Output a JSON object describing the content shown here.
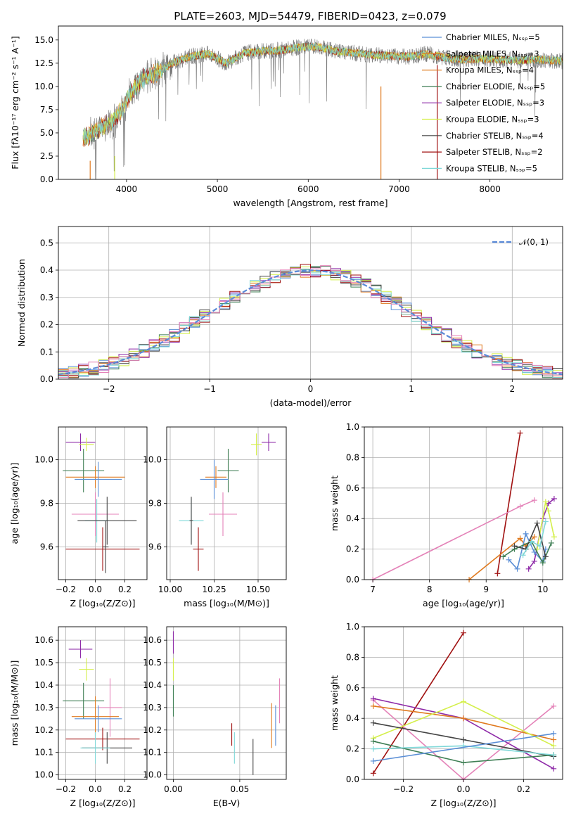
{
  "colors": {
    "Chabrier MILES": "#5b8fd6",
    "Salpeter MILES": "#e07a1f",
    "Kroupa MILES": "#e07a1f",
    "Chabrier ELODIE": "#3f7f55",
    "Salpeter ELODIE": "#8e2aa8",
    "Kroupa ELODIE": "#d4ef4a",
    "Chabrier STELIB": "#444444",
    "Salpeter STELIB": "#a01010",
    "Kroupa STELIB": "#7fd8d8",
    "pink": "#e482b8",
    "normal": "#5a8ad8"
  },
  "chart_data": [
    {
      "id": "spectrum",
      "type": "line",
      "title": "PLATE=2603, MJD=54479, FIBERID=0423, z=0.079",
      "xlabel": "wavelength [Angstrom, rest frame]",
      "ylabel": "Flux [fλ10⁻¹⁷ erg cm⁻² s⁻¹ A⁻¹]",
      "xlim": [
        3250,
        8800
      ],
      "ylim": [
        0,
        16.5
      ],
      "xticks": [
        "4000",
        "5000",
        "6000",
        "7000",
        "8000"
      ],
      "yticks": [
        "0.0",
        "2.5",
        "5.0",
        "7.5",
        "10.0",
        "12.5",
        "15.0"
      ],
      "legend_position": "right",
      "grid": false,
      "continuum_x": [
        3550,
        3700,
        3850,
        3950,
        4050,
        4200,
        4350,
        4500,
        4700,
        4900,
        5100,
        5300,
        5500,
        5700,
        5900,
        6100,
        6300,
        6500,
        6700,
        6900,
        7100,
        7300,
        7500,
        7700,
        7900,
        8100,
        8300,
        8500,
        8700,
        8800
      ],
      "continuum_y": [
        4.5,
        5.5,
        6.2,
        7.5,
        9.5,
        11.0,
        11.5,
        12.5,
        13.2,
        13.5,
        12.5,
        13.6,
        13.8,
        13.9,
        14.2,
        14.3,
        13.8,
        13.6,
        13.4,
        13.3,
        13.2,
        13.5,
        13.1,
        12.9,
        13.0,
        12.9,
        12.8,
        12.9,
        12.8,
        12.7
      ],
      "series": [
        {
          "name": "Chabrier MILES, Nₛₛₚ=5",
          "label": "Chabrier MILES",
          "nssp": "5"
        },
        {
          "name": "Salpeter MILES, Nₛₛₚ=3",
          "label": "Salpeter MILES",
          "nssp": "3"
        },
        {
          "name": "Kroupa MILES, Nₛₛₚ=4",
          "label": "Kroupa MILES",
          "nssp": "4"
        },
        {
          "name": "Chabrier ELODIE, Nₛₛₚ=5",
          "label": "Chabrier ELODIE",
          "nssp": "5"
        },
        {
          "name": "Salpeter ELODIE, Nₛₛₚ=3",
          "label": "Salpeter ELODIE",
          "nssp": "3"
        },
        {
          "name": "Kroupa ELODIE, Nₛₛₚ=3",
          "label": "Kroupa ELODIE",
          "nssp": "3"
        },
        {
          "name": "Chabrier STELIB, Nₛₛₚ=4",
          "label": "Chabrier STELIB",
          "nssp": "4"
        },
        {
          "name": "Salpeter STELIB, Nₛₛₚ=2",
          "label": "Salpeter STELIB",
          "nssp": "2"
        },
        {
          "name": "Kroupa STELIB, Nₛₛₚ=5",
          "label": "Kroupa STELIB",
          "nssp": "5"
        }
      ]
    },
    {
      "id": "residuals",
      "type": "histogram",
      "xlabel": "(data-model)/error",
      "ylabel": "Normed distribution",
      "xlim": [
        -2.5,
        2.5
      ],
      "ylim": [
        0,
        0.56
      ],
      "xticks": [
        "−2",
        "−1",
        "0",
        "1",
        "2"
      ],
      "yticks": [
        "0.0",
        "0.1",
        "0.2",
        "0.3",
        "0.4",
        "0.5"
      ],
      "grid": true,
      "legend": "𝒩(0, 1)",
      "legend_position": "top-right",
      "bin_width": 0.1
    },
    {
      "id": "age-vs-Z",
      "type": "scatter-errorbar",
      "xlabel": "Z [log₁₀(Z/Z⊙)]",
      "ylabel": "age  [log₁₀(age/yr)]",
      "xlim": [
        -0.25,
        0.35
      ],
      "ylim": [
        9.45,
        10.15
      ],
      "xticks": [
        "−0.2",
        "0.0",
        "0.2"
      ],
      "yticks": [
        "9.6",
        "9.8",
        "10.0"
      ],
      "grid": true,
      "points": [
        {
          "c": "Salpeter ELODIE",
          "x": -0.1,
          "xe": 0.1,
          "y": 10.08,
          "ye": 0.04
        },
        {
          "c": "Kroupa ELODIE",
          "x": -0.06,
          "xe": 0.05,
          "y": 10.07,
          "ye": 0.03
        },
        {
          "c": "Chabrier ELODIE",
          "x": -0.08,
          "xe": 0.14,
          "y": 9.95,
          "ye": 0.1
        },
        {
          "c": "Salpeter MILES",
          "x": 0.0,
          "xe": 0.2,
          "y": 9.92,
          "ye": 0.05
        },
        {
          "c": "Chabrier MILES",
          "x": 0.02,
          "xe": 0.16,
          "y": 9.91,
          "ye": 0.08
        },
        {
          "c": "pink",
          "x": 0.0,
          "xe": 0.16,
          "y": 9.75,
          "ye": 0.1
        },
        {
          "c": "Kroupa STELIB",
          "x": 0.01,
          "xe": 0.08,
          "y": 9.72,
          "ye": 0.1
        },
        {
          "c": "Chabrier STELIB",
          "x": 0.08,
          "xe": 0.2,
          "y": 9.72,
          "ye": 0.11
        },
        {
          "c": "Salpeter STELIB",
          "x": 0.05,
          "xe": 0.25,
          "y": 9.59,
          "ye": 0.1
        },
        {
          "c": "Chabrier STELIB",
          "x": 0.07,
          "xe": 0.02,
          "y": 9.6,
          "ye": 0.12
        }
      ]
    },
    {
      "id": "age-vs-mass",
      "type": "scatter-errorbar",
      "xlabel": "mass [log₁₀(M/M⊙)]",
      "xlim": [
        9.98,
        10.66
      ],
      "ylim": [
        9.45,
        10.15
      ],
      "xticks": [
        "10.00",
        "10.25",
        "10.50"
      ],
      "yticks": [
        "9.6",
        "9.8",
        "10.0"
      ],
      "grid": true,
      "points": [
        {
          "c": "Salpeter ELODIE",
          "x": 10.56,
          "xe": 0.04,
          "y": 10.08,
          "ye": 0.04
        },
        {
          "c": "Kroupa ELODIE",
          "x": 10.49,
          "xe": 0.03,
          "y": 10.07,
          "ye": 0.05
        },
        {
          "c": "Chabrier ELODIE",
          "x": 10.33,
          "xe": 0.06,
          "y": 9.95,
          "ye": 0.1
        },
        {
          "c": "Salpeter MILES",
          "x": 10.26,
          "xe": 0.06,
          "y": 9.92,
          "ye": 0.05
        },
        {
          "c": "Chabrier MILES",
          "x": 10.25,
          "xe": 0.08,
          "y": 9.91,
          "ye": 0.09
        },
        {
          "c": "pink",
          "x": 10.3,
          "xe": 0.08,
          "y": 9.75,
          "ye": 0.1
        },
        {
          "c": "Kroupa STELIB",
          "x": 10.12,
          "xe": 0.07,
          "y": 9.72,
          "ye": 0.1
        },
        {
          "c": "Chabrier STELIB",
          "x": 10.12,
          "xe": 0.01,
          "y": 9.72,
          "ye": 0.11
        },
        {
          "c": "Salpeter STELIB",
          "x": 10.16,
          "xe": 0.03,
          "y": 9.59,
          "ye": 0.1
        }
      ]
    },
    {
      "id": "weight-vs-age",
      "type": "line",
      "xlabel": "age  [log₁₀(age/yr)]",
      "ylabel": "mass weight",
      "xlim": [
        6.85,
        10.35
      ],
      "ylim": [
        0,
        1.0
      ],
      "xticks": [
        "7",
        "8",
        "9",
        "10"
      ],
      "yticks": [
        "0.0",
        "0.2",
        "0.4",
        "0.6",
        "0.8",
        "1.0"
      ],
      "grid": true,
      "series": [
        {
          "c": "Salpeter STELIB",
          "x": [
            9.2,
            9.6
          ],
          "y": [
            0.04,
            0.96
          ]
        },
        {
          "c": "pink",
          "x": [
            7.0,
            9.6,
            9.85
          ],
          "y": [
            0.0,
            0.48,
            0.52
          ]
        },
        {
          "c": "Salpeter MILES",
          "x": [
            8.7,
            9.6,
            9.7,
            9.85
          ],
          "y": [
            0.0,
            0.27,
            0.22,
            0.28
          ]
        },
        {
          "c": "Salpeter ELODIE",
          "x": [
            9.75,
            9.85,
            10.0,
            10.1,
            10.2
          ],
          "y": [
            0.07,
            0.12,
            0.4,
            0.5,
            0.53
          ]
        },
        {
          "c": "Kroupa ELODIE",
          "x": [
            9.9,
            10.05,
            10.1,
            10.2
          ],
          "y": [
            0.2,
            0.51,
            0.45,
            0.28
          ]
        },
        {
          "c": "Chabrier MILES",
          "x": [
            9.4,
            9.55,
            9.7,
            9.85,
            10.0,
            10.05
          ],
          "y": [
            0.13,
            0.07,
            0.3,
            0.18,
            0.12,
            0.2
          ]
        },
        {
          "c": "Chabrier ELODIE",
          "x": [
            9.3,
            9.5,
            9.8,
            10.0,
            10.15
          ],
          "y": [
            0.15,
            0.2,
            0.25,
            0.11,
            0.24
          ]
        },
        {
          "c": "Chabrier STELIB",
          "x": [
            9.5,
            9.7,
            9.9,
            10.05
          ],
          "y": [
            0.22,
            0.2,
            0.37,
            0.15
          ]
        },
        {
          "c": "Kroupa STELIB",
          "x": [
            9.65,
            9.8,
            9.95,
            10.05
          ],
          "y": [
            0.16,
            0.25,
            0.22,
            0.38
          ]
        }
      ]
    },
    {
      "id": "mass-vs-Z",
      "type": "scatter-errorbar",
      "xlabel": "Z [log₁₀(Z/Z⊙)]",
      "ylabel": "mass [log₁₀(M/M⊙)]",
      "xlim": [
        -0.25,
        0.35
      ],
      "ylim": [
        9.98,
        10.66
      ],
      "xticks": [
        "−0.2",
        "0.0",
        "0.2"
      ],
      "yticks": [
        "10.0",
        "10.1",
        "10.2",
        "10.3",
        "10.4",
        "10.5",
        "10.6"
      ],
      "grid": true,
      "points": [
        {
          "c": "Salpeter ELODIE",
          "x": -0.1,
          "xe": 0.08,
          "y": 10.56,
          "ye": 0.04
        },
        {
          "c": "Kroupa ELODIE",
          "x": -0.06,
          "xe": 0.05,
          "y": 10.47,
          "ye": 0.05
        },
        {
          "c": "Chabrier ELODIE",
          "x": -0.08,
          "xe": 0.14,
          "y": 10.33,
          "ye": 0.08
        },
        {
          "c": "pink",
          "x": 0.1,
          "xe": 0.08,
          "y": 10.3,
          "ye": 0.13
        },
        {
          "c": "Salpeter MILES",
          "x": 0.0,
          "xe": 0.16,
          "y": 10.26,
          "ye": 0.09
        },
        {
          "c": "Chabrier MILES",
          "x": 0.02,
          "xe": 0.16,
          "y": 10.25,
          "ye": 0.06
        },
        {
          "c": "Salpeter STELIB",
          "x": 0.05,
          "xe": 0.25,
          "y": 10.16,
          "ye": 0.05
        },
        {
          "c": "Chabrier STELIB",
          "x": 0.08,
          "xe": 0.17,
          "y": 10.12,
          "ye": 0.07
        },
        {
          "c": "Kroupa STELIB",
          "x": 0.0,
          "xe": 0.1,
          "y": 10.12,
          "ye": 0.07
        }
      ]
    },
    {
      "id": "mass-vs-ebv",
      "type": "scatter-errorbar",
      "xlabel": "E(B-V)",
      "xlim": [
        -0.005,
        0.085
      ],
      "ylim": [
        9.98,
        10.66
      ],
      "xticks": [
        "0.00",
        "0.05"
      ],
      "yticks": [
        "10.0",
        "10.1",
        "10.2",
        "10.3",
        "10.4",
        "10.5",
        "10.6"
      ],
      "grid": true,
      "points": [
        {
          "c": "Salpeter ELODIE",
          "x": 0.0,
          "xe": 0.0,
          "y": 10.59,
          "ye": 0.05
        },
        {
          "c": "Kroupa ELODIE",
          "x": 0.0,
          "xe": 0.0,
          "y": 10.47,
          "ye": 0.05
        },
        {
          "c": "Chabrier ELODIE",
          "x": 0.0,
          "xe": 0.0,
          "y": 10.33,
          "ye": 0.07
        },
        {
          "c": "pink",
          "x": 0.08,
          "xe": 0.0,
          "y": 10.33,
          "ye": 0.1
        },
        {
          "c": "Salpeter MILES",
          "x": 0.074,
          "xe": 0.0,
          "y": 10.22,
          "ye": 0.1
        },
        {
          "c": "Chabrier MILES",
          "x": 0.077,
          "xe": 0.0,
          "y": 10.22,
          "ye": 0.09
        },
        {
          "c": "Salpeter STELIB",
          "x": 0.044,
          "xe": 0.0,
          "y": 10.18,
          "ye": 0.05
        },
        {
          "c": "Kroupa STELIB",
          "x": 0.046,
          "xe": 0.0,
          "y": 10.12,
          "ye": 0.07
        },
        {
          "c": "Chabrier STELIB",
          "x": 0.06,
          "xe": 0.0,
          "y": 10.08,
          "ye": 0.08
        }
      ]
    },
    {
      "id": "weight-vs-Z",
      "type": "line",
      "xlabel": "Z [log₁₀(Z/Z⊙)]",
      "ylabel": "mass weight",
      "xlim": [
        -0.33,
        0.33
      ],
      "ylim": [
        0,
        1.0
      ],
      "xticks": [
        "−0.2",
        "0.0",
        "0.2"
      ],
      "yticks": [
        "0.0",
        "0.2",
        "0.4",
        "0.6",
        "0.8",
        "1.0"
      ],
      "grid": true,
      "series": [
        {
          "c": "Salpeter STELIB",
          "x": [
            -0.3,
            0.0
          ],
          "y": [
            0.04,
            0.96
          ]
        },
        {
          "c": "pink",
          "x": [
            -0.3,
            0.0,
            0.3
          ],
          "y": [
            0.52,
            0.0,
            0.48
          ]
        },
        {
          "c": "Salpeter ELODIE",
          "x": [
            -0.3,
            0.0,
            0.3
          ],
          "y": [
            0.53,
            0.4,
            0.07
          ]
        },
        {
          "c": "Salpeter MILES",
          "x": [
            -0.3,
            0.0,
            0.3
          ],
          "y": [
            0.48,
            0.4,
            0.26
          ]
        },
        {
          "c": "Kroupa ELODIE",
          "x": [
            -0.3,
            0.0,
            0.3
          ],
          "y": [
            0.27,
            0.51,
            0.22
          ]
        },
        {
          "c": "Chabrier STELIB",
          "x": [
            -0.3,
            0.0,
            0.3
          ],
          "y": [
            0.37,
            0.26,
            0.15
          ]
        },
        {
          "c": "Chabrier ELODIE",
          "x": [
            -0.3,
            0.0,
            0.3
          ],
          "y": [
            0.25,
            0.11,
            0.16
          ]
        },
        {
          "c": "Kroupa STELIB",
          "x": [
            -0.3,
            0.0,
            0.3
          ],
          "y": [
            0.2,
            0.22,
            0.16
          ]
        },
        {
          "c": "Chabrier MILES",
          "x": [
            -0.3,
            0.3
          ],
          "y": [
            0.12,
            0.3
          ]
        }
      ]
    }
  ]
}
